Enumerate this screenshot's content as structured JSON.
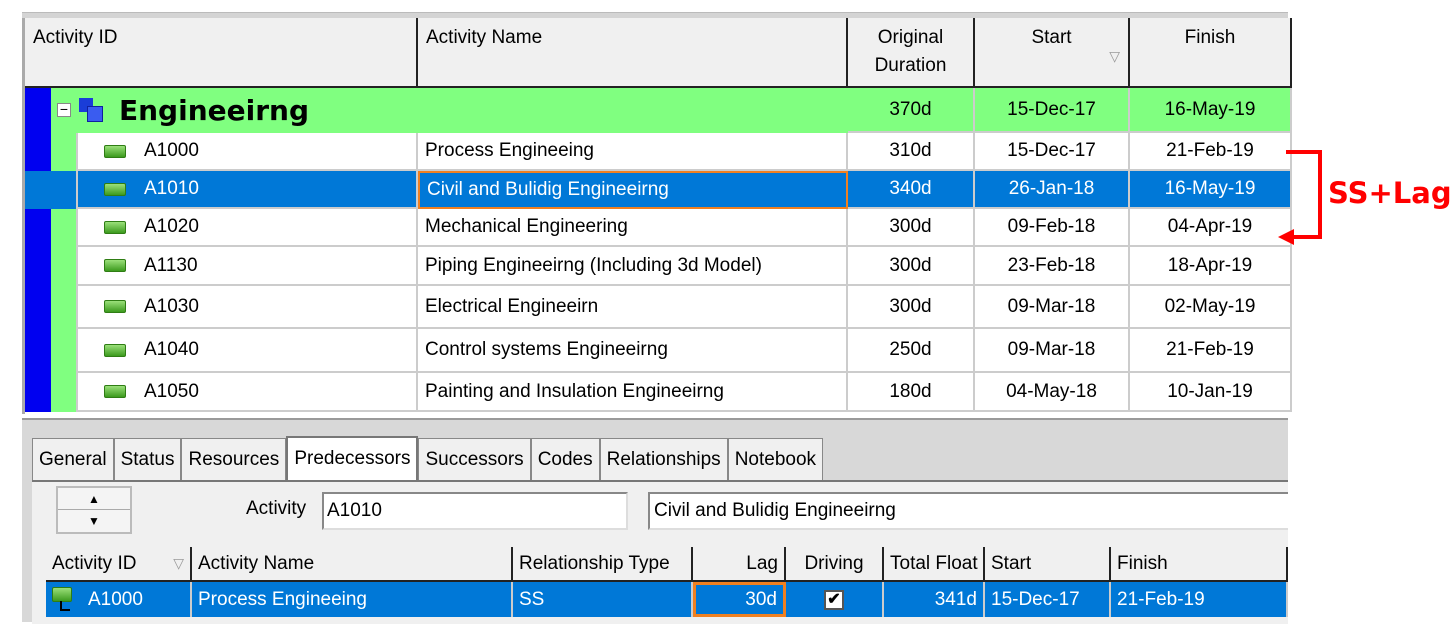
{
  "grid": {
    "headers": {
      "id": "Activity ID",
      "name": "Activity Name",
      "duration": "Original Duration",
      "start": "Start",
      "finish": "Finish"
    },
    "group": {
      "name": "Engineeirng",
      "duration": "370d",
      "start": "15-Dec-17",
      "finish": "16-May-19"
    },
    "rows": [
      {
        "id": "A1000",
        "name": "Process Engineeing",
        "duration": "310d",
        "start": "15-Dec-17",
        "finish": "21-Feb-19"
      },
      {
        "id": "A1010",
        "name": "Civil and Bulidig Engineeirng",
        "duration": "340d",
        "start": "26-Jan-18",
        "finish": "16-May-19"
      },
      {
        "id": "A1020",
        "name": "Mechanical Engineering",
        "duration": "300d",
        "start": "09-Feb-18",
        "finish": "04-Apr-19"
      },
      {
        "id": "A1130",
        "name": "Piping Engineeirng (Including 3d Model)",
        "duration": "300d",
        "start": "23-Feb-18",
        "finish": "18-Apr-19"
      },
      {
        "id": "A1030",
        "name": "Electrical Engineeirn",
        "duration": "300d",
        "start": "09-Mar-18",
        "finish": "02-May-19"
      },
      {
        "id": "A1040",
        "name": "Control systems Engineeirng",
        "duration": "250d",
        "start": "09-Mar-18",
        "finish": "21-Feb-19"
      },
      {
        "id": "A1050",
        "name": "Painting and Insulation Engineeirng",
        "duration": "180d",
        "start": "04-May-18",
        "finish": "10-Jan-19"
      }
    ],
    "selected_row": "A1010"
  },
  "annotation": {
    "label": "SS+Lag",
    "color": "#ff0000"
  },
  "details": {
    "tabs": [
      "General",
      "Status",
      "Resources",
      "Predecessors",
      "Successors",
      "Codes",
      "Relationships",
      "Notebook"
    ],
    "active_tab": "Predecessors",
    "activity_label": "Activity",
    "activity_id": "A1010",
    "activity_name": "Civil and Bulidig Engineeirng",
    "headers": {
      "id": "Activity ID",
      "name": "Activity Name",
      "type": "Relationship Type",
      "lag": "Lag",
      "driving": "Driving",
      "float": "Total Float",
      "start": "Start",
      "finish": "Finish"
    },
    "rows": [
      {
        "id": "A1000",
        "name": "Process Engineeing",
        "type": "SS",
        "lag": "30d",
        "driving": true,
        "float": "341d",
        "start": "15-Dec-17",
        "finish": "21-Feb-19"
      }
    ]
  },
  "colors": {
    "selection": "#0078d7",
    "wbs_band": "#80ff80",
    "wbs_strip": "#0000f0",
    "focus": "#f08020"
  }
}
